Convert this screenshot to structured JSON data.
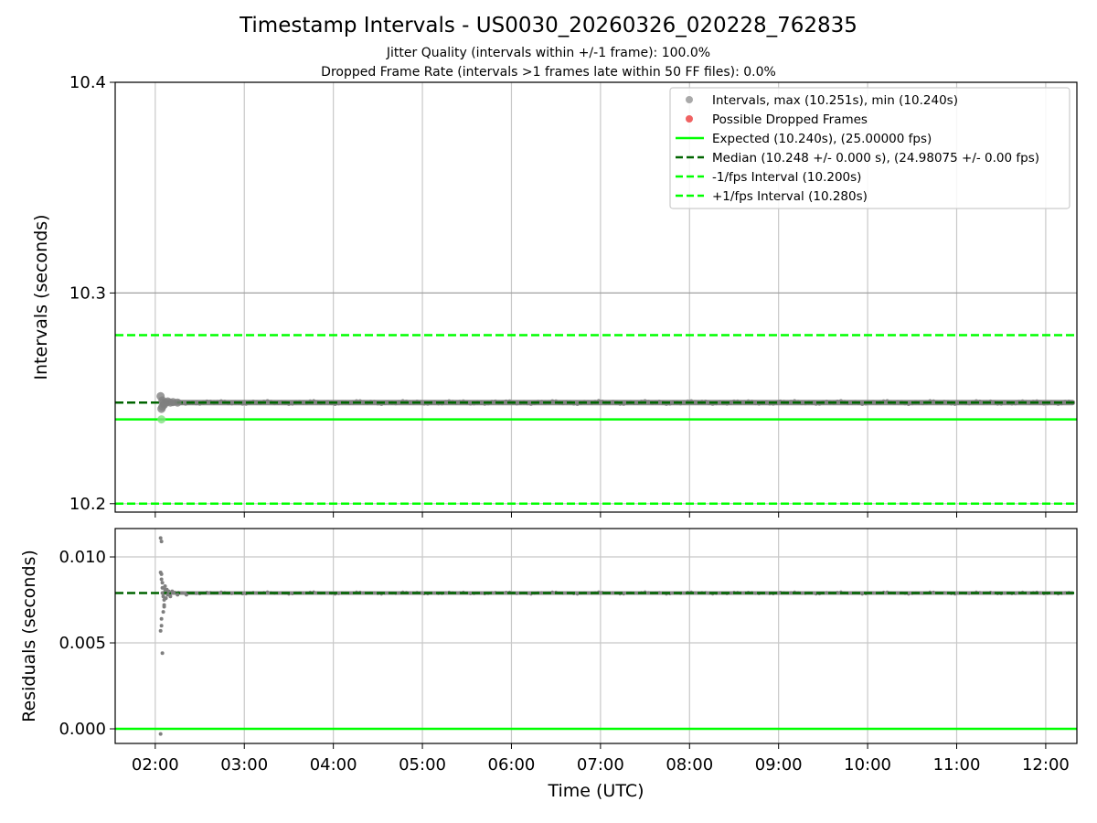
{
  "title": "Timestamp Intervals - US0030_20260326_020228_762835",
  "subtitle_jitter": "Jitter Quality (intervals within +/-1 frame): 100.0%",
  "subtitle_dropped": "Dropped Frame Rate (intervals >1 frames late within 50 FF files): 0.0%",
  "colors": {
    "points": "#7f7f7f",
    "legend_points": "#a9a9a9",
    "dropped": "#f06262",
    "expected": "#00ff00",
    "median": "#006400",
    "fps_interval": "#00ff00",
    "grid": "#c8c8c8",
    "ref_line": "#a0a0a0"
  },
  "chart_data": [
    {
      "type": "scatter",
      "name": "intervals",
      "ylabel": "Intervals (seconds)",
      "ylim": [
        10.196,
        10.4
      ],
      "yticks": [
        10.2,
        10.3,
        10.4
      ],
      "ytick_labels": [
        "10.2",
        "10.3",
        "10.4"
      ],
      "grid": true,
      "legend_position": "upper right",
      "legend": [
        {
          "label": "Intervals, max (10.251s), min (10.240s)",
          "kind": "marker",
          "color_key": "legend_points"
        },
        {
          "label": "Possible Dropped Frames",
          "kind": "marker",
          "color_key": "dropped"
        },
        {
          "label": "Expected (10.240s), (25.00000 fps)",
          "kind": "solid",
          "color_key": "expected"
        },
        {
          "label": "Median (10.248 +/- 0.000 s), (24.98075 +/- 0.00 fps)",
          "kind": "dashed",
          "color_key": "median"
        },
        {
          "label": "-1/fps Interval (10.200s)",
          "kind": "dashed",
          "color_key": "fps_interval"
        },
        {
          "label": "+1/fps Interval (10.280s)",
          "kind": "dashed",
          "color_key": "fps_interval"
        }
      ],
      "reference_lines": [
        {
          "name": "expected-line",
          "y": 10.24,
          "style": "solid",
          "color_key": "expected"
        },
        {
          "name": "median-line",
          "y": 10.248,
          "style": "dashed",
          "color_key": "median"
        },
        {
          "name": "minus-fps-line",
          "y": 10.2,
          "style": "dashed",
          "color_key": "fps_interval"
        },
        {
          "name": "plus-fps-line",
          "y": 10.28,
          "style": "dashed",
          "color_key": "fps_interval"
        }
      ],
      "series": [
        {
          "name": "intervals",
          "x_hours": [
            2.06,
            2.07,
            2.07,
            2.08,
            2.08,
            2.09,
            2.1,
            2.12,
            2.14,
            2.17,
            2.2,
            2.25
          ],
          "values": [
            10.251,
            10.24,
            10.245,
            10.249,
            10.246,
            10.248,
            10.247,
            10.248,
            10.2485,
            10.248,
            10.2482,
            10.248
          ]
        },
        {
          "name": "intervals-band",
          "x_range_hours": [
            2.1,
            12.3
          ],
          "value": 10.248
        }
      ],
      "dropped_frames": []
    },
    {
      "type": "scatter",
      "name": "residuals",
      "ylabel": "Residuals (seconds)",
      "xlabel": "Time (UTC)",
      "ylim": [
        -0.00085,
        0.01165
      ],
      "yticks": [
        0.0,
        0.005,
        0.01
      ],
      "ytick_labels": [
        "0.000",
        "0.005",
        "0.010"
      ],
      "grid": true,
      "reference_lines": [
        {
          "name": "zero-line",
          "y": 0.0,
          "style": "solid",
          "color_key": "expected"
        },
        {
          "name": "median-residual-line",
          "y": 0.0079,
          "style": "dashed",
          "color_key": "median"
        }
      ],
      "series": [
        {
          "name": "residuals",
          "x_hours": [
            2.06,
            2.07,
            2.06,
            2.07,
            2.07,
            2.08,
            2.08,
            2.08,
            2.09,
            2.1,
            2.1,
            2.11,
            2.11,
            2.06,
            2.07,
            2.07,
            2.06,
            2.08,
            2.09,
            2.1,
            2.12,
            2.13,
            2.14,
            2.15,
            2.17,
            2.19,
            2.21,
            2.25,
            2.3,
            2.35
          ],
          "values": [
            0.0111,
            0.0109,
            0.0091,
            0.009,
            0.0087,
            0.0085,
            0.0082,
            0.0079,
            0.0077,
            0.0075,
            0.0072,
            0.0083,
            0.0081,
            0.0057,
            0.006,
            0.0064,
            -0.0003,
            0.0044,
            0.0068,
            0.0071,
            0.0076,
            0.0081,
            0.0078,
            0.008,
            0.0077,
            0.008,
            0.0079,
            0.0078,
            0.0079,
            0.0078
          ]
        },
        {
          "name": "residuals-band",
          "x_range_hours": [
            2.1,
            12.3
          ],
          "value": 0.0079
        }
      ]
    }
  ],
  "x_axis": {
    "range_hours": [
      1.55,
      12.35
    ],
    "ticks": [
      {
        "hours": 2,
        "label": "02:00"
      },
      {
        "hours": 3,
        "label": "03:00"
      },
      {
        "hours": 4,
        "label": "04:00"
      },
      {
        "hours": 5,
        "label": "05:00"
      },
      {
        "hours": 6,
        "label": "06:00"
      },
      {
        "hours": 7,
        "label": "07:00"
      },
      {
        "hours": 8,
        "label": "08:00"
      },
      {
        "hours": 9,
        "label": "09:00"
      },
      {
        "hours": 10,
        "label": "10:00"
      },
      {
        "hours": 11,
        "label": "11:00"
      },
      {
        "hours": 12,
        "label": "12:00"
      }
    ],
    "label": "Time (UTC)"
  }
}
